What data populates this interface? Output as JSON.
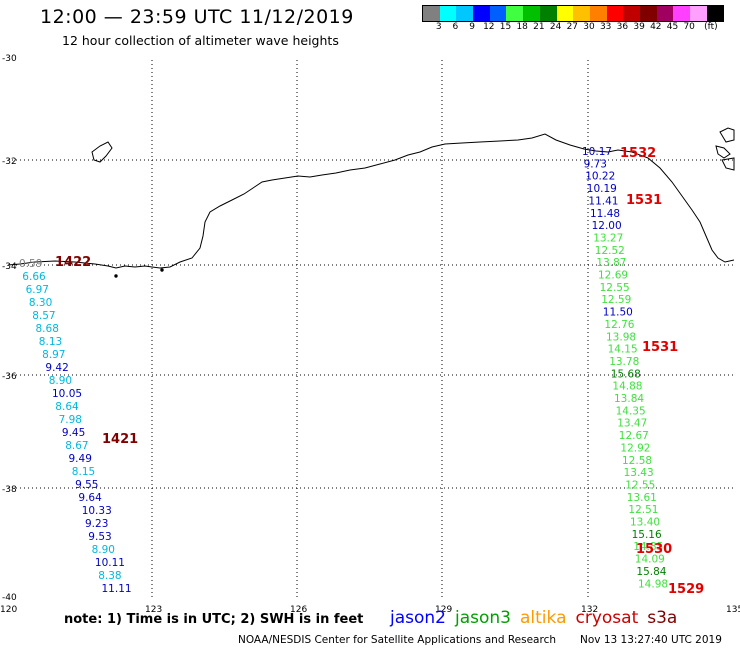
{
  "header": {
    "title": "12:00 — 23:59 UTC 11/12/2019",
    "subtitle": "12 hour collection of altimeter wave heights"
  },
  "legend": {
    "unit": "(ft)",
    "colors": [
      "#808080",
      "#00ffff",
      "#00c8ff",
      "#0000ff",
      "#0060ff",
      "#40ff40",
      "#00c000",
      "#008000",
      "#ffff00",
      "#ffc000",
      "#ff8000",
      "#ff0000",
      "#c00000",
      "#800000",
      "#a00060",
      "#ff40ff",
      "#ffa0ff",
      "#000000"
    ],
    "labels": [
      "3",
      "6",
      "9",
      "12",
      "15",
      "18",
      "21",
      "24",
      "27",
      "30",
      "33",
      "36",
      "39",
      "42",
      "45",
      "70"
    ]
  },
  "axes": {
    "lat_labels": [
      "-30",
      "-32",
      "-34",
      "-36",
      "-38",
      "-40"
    ],
    "lon_labels": [
      "120",
      "123",
      "126",
      "129",
      "132",
      "135"
    ]
  },
  "tracks": {
    "west": [
      {
        "v": "0.59",
        "c": "#808080"
      },
      {
        "v": "6.66",
        "c": "#00b8e0"
      },
      {
        "v": "6.97",
        "c": "#00b8e0"
      },
      {
        "v": "8.30",
        "c": "#00b8e0"
      },
      {
        "v": "8.57",
        "c": "#00b8e0"
      },
      {
        "v": "8.68",
        "c": "#00b8e0"
      },
      {
        "v": "8.13",
        "c": "#00b8e0"
      },
      {
        "v": "8.97",
        "c": "#00b8e0"
      },
      {
        "v": "9.42",
        "c": "#0000c0"
      },
      {
        "v": "8.90",
        "c": "#00b8e0"
      },
      {
        "v": "10.05",
        "c": "#0000c0"
      },
      {
        "v": "8.64",
        "c": "#00b8e0"
      },
      {
        "v": "7.98",
        "c": "#00b8e0"
      },
      {
        "v": "9.45",
        "c": "#0000c0"
      },
      {
        "v": "8.67",
        "c": "#00b8e0"
      },
      {
        "v": "9.49",
        "c": "#0000c0"
      },
      {
        "v": "8.15",
        "c": "#00b8e0"
      },
      {
        "v": "9.55",
        "c": "#0000c0"
      },
      {
        "v": "9.64",
        "c": "#0000c0"
      },
      {
        "v": "10.33",
        "c": "#0000c0"
      },
      {
        "v": "9.23",
        "c": "#0000c0"
      },
      {
        "v": "9.53",
        "c": "#0000c0"
      },
      {
        "v": "8.90",
        "c": "#00b8e0"
      },
      {
        "v": "10.11",
        "c": "#0000c0"
      },
      {
        "v": "8.38",
        "c": "#00b8e0"
      },
      {
        "v": "11.11",
        "c": "#0000c0"
      }
    ],
    "east": [
      {
        "v": "10.17",
        "c": "#0000c0"
      },
      {
        "v": "9.73",
        "c": "#0000c0"
      },
      {
        "v": "10.22",
        "c": "#0000c0"
      },
      {
        "v": "10.19",
        "c": "#0000c0"
      },
      {
        "v": "11.41",
        "c": "#0000c0"
      },
      {
        "v": "11.48",
        "c": "#0000c0"
      },
      {
        "v": "12.00",
        "c": "#0000c0"
      },
      {
        "v": "13.27",
        "c": "#40e040"
      },
      {
        "v": "12.52",
        "c": "#40e040"
      },
      {
        "v": "13.87",
        "c": "#40e040"
      },
      {
        "v": "12.69",
        "c": "#40e040"
      },
      {
        "v": "12.55",
        "c": "#40e040"
      },
      {
        "v": "12.59",
        "c": "#40e040"
      },
      {
        "v": "11.50",
        "c": "#0000c0"
      },
      {
        "v": "12.76",
        "c": "#40e040"
      },
      {
        "v": "13.98",
        "c": "#40e040"
      },
      {
        "v": "14.15",
        "c": "#40e040"
      },
      {
        "v": "13.78",
        "c": "#40e040"
      },
      {
        "v": "15.68",
        "c": "#008000"
      },
      {
        "v": "14.88",
        "c": "#40e040"
      },
      {
        "v": "13.84",
        "c": "#40e040"
      },
      {
        "v": "14.35",
        "c": "#40e040"
      },
      {
        "v": "13.47",
        "c": "#40e040"
      },
      {
        "v": "12.67",
        "c": "#40e040"
      },
      {
        "v": "12.92",
        "c": "#40e040"
      },
      {
        "v": "12.58",
        "c": "#40e040"
      },
      {
        "v": "13.43",
        "c": "#40e040"
      },
      {
        "v": "12.55",
        "c": "#40e040"
      },
      {
        "v": "13.61",
        "c": "#40e040"
      },
      {
        "v": "12.51",
        "c": "#40e040"
      },
      {
        "v": "13.40",
        "c": "#40e040"
      },
      {
        "v": "15.16",
        "c": "#008000"
      },
      {
        "v": "14.85",
        "c": "#40e040"
      },
      {
        "v": "14.09",
        "c": "#40e040"
      },
      {
        "v": "15.84",
        "c": "#008000"
      },
      {
        "v": "14.98",
        "c": "#40e040"
      }
    ]
  },
  "time_labels": [
    {
      "t": "1422",
      "c": "#800000"
    },
    {
      "t": "1421",
      "c": "#800000"
    },
    {
      "t": "1532",
      "c": "#e00000"
    },
    {
      "t": "1531",
      "c": "#e00000"
    },
    {
      "t": "1531",
      "c": "#e00000"
    },
    {
      "t": "1530",
      "c": "#e00000"
    },
    {
      "t": "1529",
      "c": "#e00000"
    }
  ],
  "footer": {
    "note": "note:  1) Time is in UTC;  2) SWH is in feet",
    "satellites": [
      {
        "name": "jason2",
        "color": "#0000ff"
      },
      {
        "name": "jason3",
        "color": "#00a000"
      },
      {
        "name": "altika",
        "color": "#ff9900"
      },
      {
        "name": "cryosat",
        "color": "#cc0000"
      },
      {
        "name": "s3a",
        "color": "#800000"
      }
    ],
    "credit": "NOAA/NESDIS Center for Satellite Applications and Research",
    "timestamp": "Nov 13 13:27:40 UTC 2019"
  }
}
